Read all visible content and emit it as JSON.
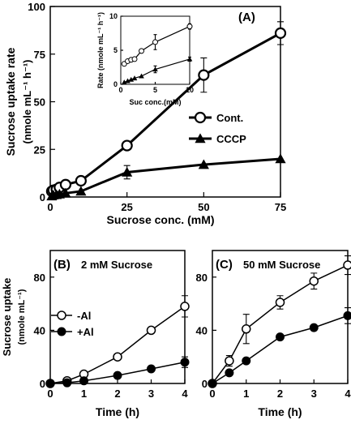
{
  "figure": {
    "shared_ylabel_bottom": "Sucrose uptake",
    "shared_yunit_bottom": "(nmole mL⁻¹)"
  },
  "chart_data": [
    {
      "id": "A",
      "type": "line",
      "panel_label": "(A)",
      "xlabel": "Sucrose conc. (mM)",
      "ylabel": "Sucrose uptake rate",
      "yunit": "(nmole mL⁻¹ h⁻¹)",
      "xlim": [
        0,
        75
      ],
      "ylim": [
        0,
        100
      ],
      "xticks": [
        0,
        25,
        50,
        75
      ],
      "yticks": [
        0,
        25,
        50,
        75,
        100
      ],
      "legend_position": "center-right",
      "series": [
        {
          "name": "Cont.",
          "marker": "open-circle",
          "x": [
            0.5,
            1,
            2,
            3,
            5,
            10,
            25,
            50,
            75
          ],
          "y": [
            3,
            3.5,
            4,
            5,
            6.5,
            8.5,
            27,
            64,
            86
          ],
          "err": [
            0,
            0,
            0,
            0,
            0,
            0,
            0,
            9,
            6
          ]
        },
        {
          "name": "CCCP",
          "marker": "filled-triangle",
          "x": [
            0.5,
            1,
            2,
            3,
            5,
            10,
            25,
            50,
            75
          ],
          "y": [
            0.5,
            1,
            1.2,
            1.5,
            2,
            3,
            13,
            17,
            20
          ],
          "err": [
            0,
            0,
            0,
            0,
            0,
            0,
            3.5,
            0,
            0
          ]
        }
      ]
    },
    {
      "id": "A-inset",
      "type": "line",
      "xlabel": "Suc conc.(mM)",
      "ylabel": "Rate (nmole mL⁻¹ h⁻¹)",
      "xlim": [
        0,
        10
      ],
      "ylim": [
        0,
        10
      ],
      "xticks": [
        0,
        5,
        10
      ],
      "yticks": [
        0,
        5,
        10
      ],
      "series": [
        {
          "name": "Cont.",
          "marker": "open-circle",
          "x": [
            0.5,
            1,
            1.5,
            2,
            3,
            5,
            10
          ],
          "y": [
            3,
            3.4,
            3.6,
            3.7,
            4.9,
            6.2,
            8.5
          ],
          "err": [
            0,
            0,
            0,
            0,
            0,
            1.1,
            0.4
          ]
        },
        {
          "name": "CCCP",
          "marker": "filled-triangle",
          "x": [
            0.5,
            1,
            1.5,
            2,
            3,
            5,
            10
          ],
          "y": [
            0.3,
            0.5,
            0.7,
            0.9,
            1.2,
            2.2,
            3.7
          ],
          "err": [
            0,
            0,
            0,
            0,
            0,
            0.5,
            0.3
          ]
        }
      ]
    },
    {
      "id": "B",
      "type": "line",
      "panel_label": "(B)",
      "subtitle": "2 mM Sucrose",
      "xlabel": "Time (h)",
      "xlim": [
        0,
        4
      ],
      "ylim": [
        0,
        100
      ],
      "xticks": [
        0,
        1,
        2,
        3,
        4
      ],
      "yticks": [
        0,
        40,
        80
      ],
      "legend_position": "center-left",
      "series": [
        {
          "name": "-Al",
          "marker": "open-circle",
          "x": [
            0,
            0.5,
            1,
            2,
            3,
            4
          ],
          "y": [
            0,
            2,
            7,
            20,
            40,
            58
          ],
          "err": [
            0,
            0,
            0,
            0,
            0,
            8
          ]
        },
        {
          "name": "+Al",
          "marker": "filled-circle",
          "x": [
            0,
            0.5,
            1,
            2,
            3,
            4
          ],
          "y": [
            0,
            0.5,
            2,
            6,
            11,
            16
          ],
          "err": [
            0,
            0,
            0,
            0,
            0,
            4
          ]
        }
      ]
    },
    {
      "id": "C",
      "type": "line",
      "panel_label": "(C)",
      "subtitle": "50 mM Sucrose",
      "xlabel": "Time (h)",
      "xlim": [
        0,
        4
      ],
      "ylim": [
        0,
        100
      ],
      "xticks": [
        0,
        1,
        2,
        3,
        4
      ],
      "yticks": [
        0,
        40,
        80
      ],
      "series": [
        {
          "name": "-Al",
          "marker": "open-circle",
          "x": [
            0,
            0.5,
            1,
            2,
            3,
            4
          ],
          "y": [
            0,
            17,
            41,
            61,
            77,
            89
          ],
          "err": [
            0,
            4,
            11,
            5,
            6,
            7
          ]
        },
        {
          "name": "+Al",
          "marker": "filled-circle",
          "x": [
            0,
            0.5,
            1,
            2,
            3,
            4
          ],
          "y": [
            0,
            8,
            17,
            35,
            42,
            51
          ],
          "err": [
            0,
            0,
            0,
            0,
            0,
            6
          ]
        }
      ]
    }
  ]
}
